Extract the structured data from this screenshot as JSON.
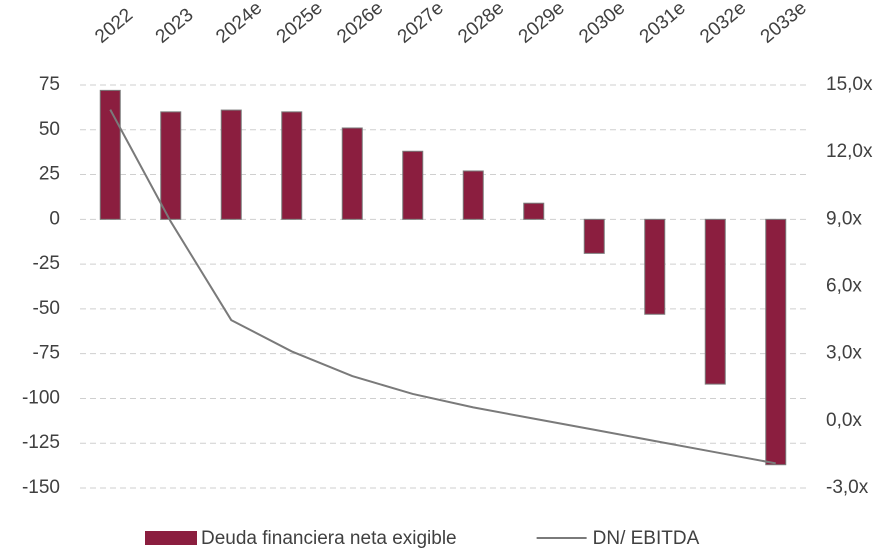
{
  "chart_data": {
    "type": "bar",
    "categories": [
      "2022",
      "2023",
      "2024e",
      "2025e",
      "2026e",
      "2027e",
      "2028e",
      "2029e",
      "2030e",
      "2031e",
      "2032e",
      "2033e"
    ],
    "series": [
      {
        "name": "Deuda financiera neta exigible",
        "color": "#8b1e3f",
        "type": "bar",
        "values": [
          72,
          60,
          61,
          60,
          51,
          38,
          27,
          9,
          -19,
          -53,
          -92,
          -137
        ]
      },
      {
        "name": "DN/ EBITDA",
        "color": "#7a7a7a",
        "type": "line",
        "axis": "y2",
        "values": [
          13.9,
          8.9,
          4.5,
          3.1,
          2.0,
          1.2,
          0.6,
          0.1,
          -0.4,
          -0.9,
          -1.4,
          -1.9
        ]
      }
    ],
    "ylim": [
      -150,
      75
    ],
    "yticks": [
      -150,
      -125,
      -100,
      -75,
      -50,
      -25,
      0,
      25,
      50,
      75
    ],
    "y2lim": [
      -3,
      15
    ],
    "y2ticks": [
      {
        "value": -3,
        "label": "-3,0x"
      },
      {
        "value": 0,
        "label": "0,0x"
      },
      {
        "value": 3,
        "label": "3,0x"
      },
      {
        "value": 6,
        "label": "6,0x"
      },
      {
        "value": 9,
        "label": "9,0x"
      },
      {
        "value": 12,
        "label": "12,0x"
      },
      {
        "value": 15,
        "label": "15,0x"
      }
    ],
    "grid": true,
    "legend": "bottom"
  }
}
